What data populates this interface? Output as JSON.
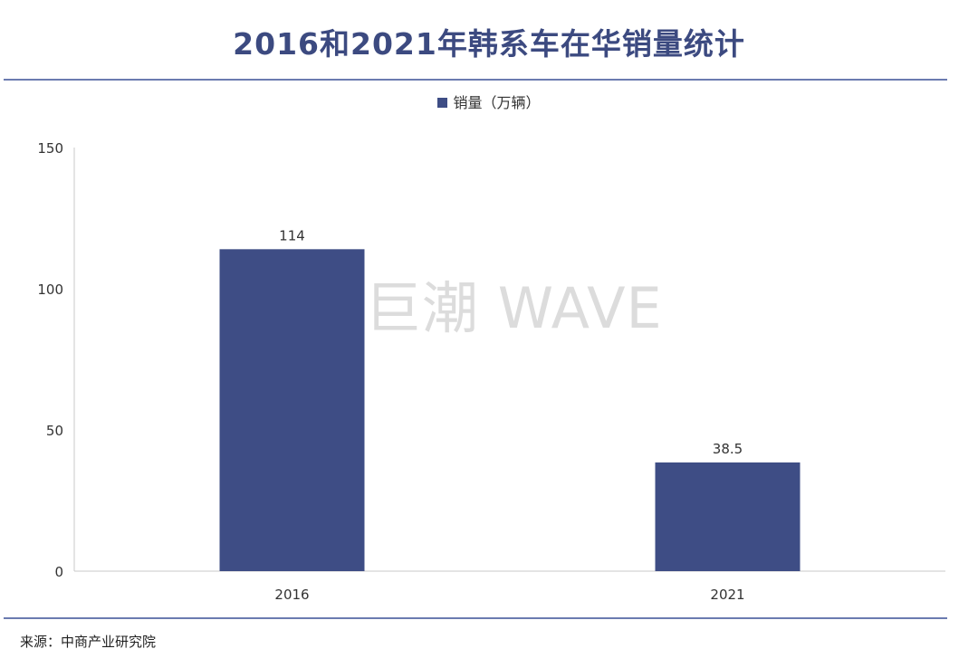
{
  "title": "2016和2021年韩系车在华销量统计",
  "legend_label": "销量（万辆）",
  "watermark": "巨潮 WAVE",
  "source": "来源：中商产业研究院",
  "colors": {
    "bar": "#3e4d85",
    "title": "#3c4a80",
    "rule": "#6b7bb0",
    "axis": "#c8c8c8",
    "watermark": "#dcdcdc"
  },
  "chart_data": {
    "type": "bar",
    "categories": [
      "2016",
      "2021"
    ],
    "series": [
      {
        "name": "销量（万辆）",
        "values": [
          114,
          38.5
        ]
      }
    ],
    "data_labels": [
      "114",
      "38.5"
    ],
    "ylim": [
      0,
      150
    ],
    "yticks": [
      0,
      50,
      100,
      150
    ],
    "title": "2016和2021年韩系车在华销量统计",
    "legend_position": "top"
  }
}
